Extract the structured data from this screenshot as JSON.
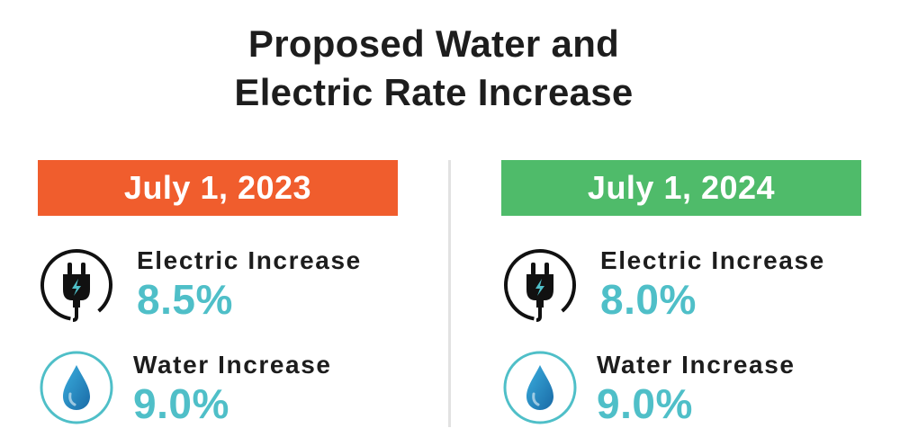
{
  "title": {
    "line1": "Proposed Water and",
    "line2": "Electric Rate Increase"
  },
  "columns": [
    {
      "date": "July 1, 2023",
      "banner_color": "#f05d2d",
      "electric": {
        "label": "Electric Increase",
        "value": "8.5%",
        "icon": "electric-plug-icon"
      },
      "water": {
        "label": "Water Increase",
        "value": "9.0%",
        "icon": "water-drop-icon"
      }
    },
    {
      "date": "July 1, 2024",
      "banner_color": "#4fbb6a",
      "electric": {
        "label": "Electric Increase",
        "value": "8.0%",
        "icon": "electric-plug-icon"
      },
      "water": {
        "label": "Water Increase",
        "value": "9.0%",
        "icon": "water-drop-icon"
      }
    }
  ],
  "colors": {
    "accent_teal": "#4fbfc8",
    "text_dark": "#1d1d1d",
    "divider": "#e2e2e2"
  }
}
